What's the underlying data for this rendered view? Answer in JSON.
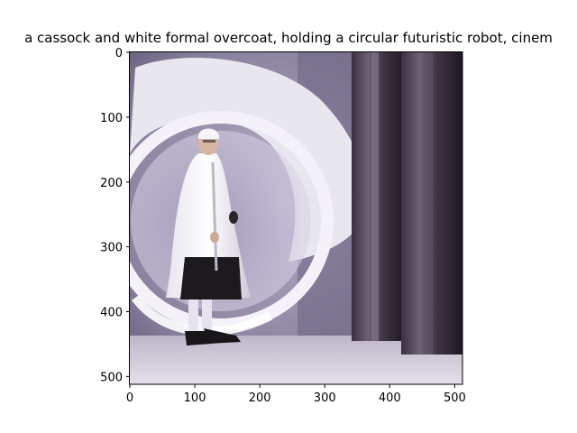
{
  "chart_data": {
    "type": "image",
    "title": "a cassock and white formal overcoat, holding a circular futuristic robot, cinem",
    "x_ticks": [
      0,
      100,
      200,
      300,
      400,
      500
    ],
    "y_ticks": [
      0,
      100,
      200,
      300,
      400,
      500
    ],
    "xlim": [
      0,
      512
    ],
    "ylim": [
      512,
      0
    ],
    "image_content": "man-in-white-overcoat-and-cassock-with-large-circular-robot"
  }
}
